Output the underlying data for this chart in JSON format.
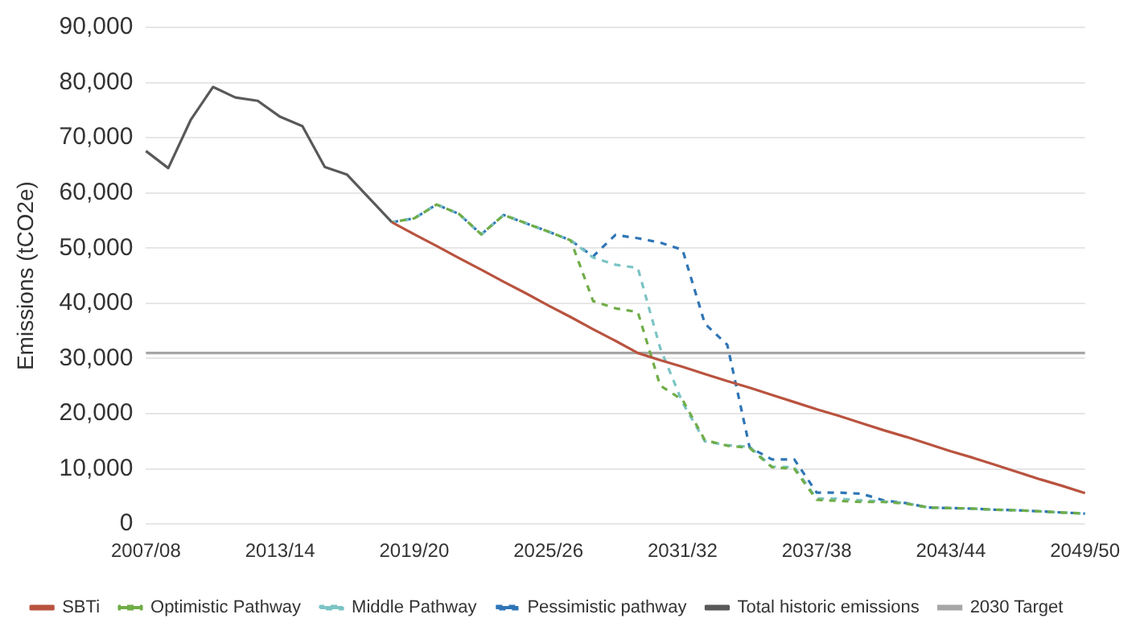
{
  "chart_data": {
    "type": "line",
    "ylabel": "Emissions (tCO2e)",
    "categories": [
      "2007/08",
      null,
      null,
      null,
      null,
      null,
      "2013/14",
      null,
      null,
      null,
      null,
      null,
      "2019/20",
      null,
      null,
      null,
      null,
      null,
      "2025/26",
      null,
      null,
      null,
      null,
      null,
      "2031/32",
      null,
      null,
      null,
      null,
      null,
      "2037/38",
      null,
      null,
      null,
      null,
      null,
      "2043/44",
      null,
      null,
      null,
      null,
      null,
      "2049/50"
    ],
    "ylim": [
      0,
      90000
    ],
    "yticks": [
      0,
      {
        "value": 10000,
        "label": "10,000"
      },
      {
        "value": 20000,
        "label": "20,000"
      },
      {
        "value": 30000,
        "label": "30,000"
      },
      {
        "value": 40000,
        "label": "40,000"
      },
      {
        "value": 50000,
        "label": "50,000"
      },
      {
        "value": 60000,
        "label": "60,000"
      },
      {
        "value": 70000,
        "label": "70,000"
      },
      {
        "value": 80000,
        "label": "80,000"
      },
      {
        "value": 90000,
        "label": "90,000"
      }
    ],
    "grid": "y",
    "legend": "bottom",
    "marker": "none",
    "series": [
      {
        "name": "Total historic emissions",
        "color": "#595959",
        "line_style": "solid",
        "values": [
          67600,
          64500,
          73200,
          79200,
          77300,
          76700,
          73800,
          72100,
          64700,
          63300,
          59000,
          54700,
          null,
          null,
          null,
          null,
          null,
          null,
          null,
          null,
          null,
          null,
          null,
          null,
          null,
          null,
          null,
          null,
          null,
          null,
          null,
          null,
          null,
          null,
          null,
          null,
          null,
          null,
          null,
          null,
          null,
          null,
          null
        ]
      },
      {
        "name": "Pessimistic pathway",
        "color": "#2e75b6",
        "line_style": "dashed",
        "values": [
          null,
          null,
          null,
          null,
          null,
          null,
          null,
          null,
          null,
          null,
          null,
          54700,
          55400,
          57900,
          56200,
          52500,
          56000,
          54500,
          53000,
          51400,
          48500,
          52400,
          51800,
          51000,
          49700,
          36300,
          32500,
          13900,
          11700,
          11700,
          5700,
          5700,
          5500,
          4300,
          3800,
          3000,
          2900,
          2800,
          2600,
          2500,
          2300,
          2100,
          1900
        ]
      },
      {
        "name": "Middle Pathway",
        "color": "#7cc4c4",
        "line_style": "dashed",
        "values": [
          null,
          null,
          null,
          null,
          null,
          null,
          null,
          null,
          null,
          null,
          null,
          54700,
          55400,
          57900,
          56200,
          52500,
          56000,
          54500,
          53000,
          51400,
          48300,
          47000,
          46400,
          31900,
          22000,
          15000,
          14300,
          14000,
          10400,
          10300,
          4600,
          4600,
          4300,
          4100,
          3800,
          3000,
          2900,
          2800,
          2600,
          2500,
          2300,
          2100,
          1900
        ]
      },
      {
        "name": "Optimistic Pathway",
        "color": "#70ad47",
        "line_style": "dashed",
        "values": [
          null,
          null,
          null,
          null,
          null,
          null,
          null,
          null,
          null,
          null,
          null,
          54700,
          55400,
          57900,
          56200,
          52500,
          56000,
          54500,
          53000,
          51400,
          40400,
          39100,
          38400,
          25100,
          22500,
          15200,
          14200,
          13800,
          10300,
          10000,
          4400,
          4200,
          4000,
          4000,
          3700,
          3000,
          2900,
          2800,
          2600,
          2500,
          2300,
          2100,
          1900
        ]
      },
      {
        "name": "SBTi",
        "color": "#b9533f",
        "line_style": "solid",
        "values": [
          null,
          null,
          null,
          null,
          null,
          null,
          null,
          null,
          null,
          null,
          null,
          54700,
          52500,
          50400,
          48200,
          46100,
          43900,
          41800,
          39600,
          37500,
          35300,
          33200,
          31000,
          29700,
          28500,
          27200,
          25900,
          24700,
          23400,
          22100,
          20800,
          19600,
          18300,
          17000,
          15800,
          14500,
          13200,
          12000,
          10700,
          9400,
          8100,
          6900,
          5600
        ]
      }
    ],
    "ref_lines": [
      {
        "axis": "y",
        "value": 31000,
        "label": "2030 Target",
        "color": "#a6a6a6"
      }
    ]
  }
}
